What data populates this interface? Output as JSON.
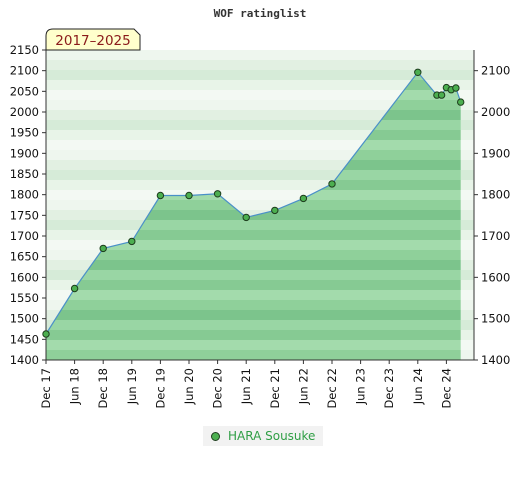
{
  "chart_data": {
    "type": "area",
    "title": "WOF ratinglist",
    "period_badge": "2017–2025",
    "ylim": [
      1400,
      2150
    ],
    "y_ticks_left": [
      "2150",
      "2100",
      "2050",
      "2000",
      "1950",
      "1900",
      "1850",
      "1800",
      "1750",
      "1700",
      "1650",
      "1600",
      "1550",
      "1500",
      "1450",
      "1400"
    ],
    "y_ticks_right": [
      "2100",
      "2000",
      "1900",
      "1800",
      "1700",
      "1600",
      "1500",
      "1400"
    ],
    "x_tick_labels": [
      "Dec 17",
      "Jun 18",
      "Dec 18",
      "Jun 19",
      "Dec 19",
      "Jun 20",
      "Dec 20",
      "Jun 21",
      "Dec 21",
      "Jun 22",
      "Dec 22",
      "Jun 23",
      "Dec 23",
      "Jun 24",
      "Dec 24"
    ],
    "series": [
      {
        "name": "HARA Sousuke",
        "color": "#4caf50",
        "points": [
          {
            "x": "2017-12",
            "y": 1463
          },
          {
            "x": "2018-06",
            "y": 1573
          },
          {
            "x": "2018-12",
            "y": 1670
          },
          {
            "x": "2019-06",
            "y": 1687
          },
          {
            "x": "2019-12",
            "y": 1798
          },
          {
            "x": "2020-06",
            "y": 1798
          },
          {
            "x": "2020-12",
            "y": 1802
          },
          {
            "x": "2021-06",
            "y": 1745
          },
          {
            "x": "2021-12",
            "y": 1762
          },
          {
            "x": "2022-06",
            "y": 1791
          },
          {
            "x": "2022-12",
            "y": 1826
          },
          {
            "x": "2024-06",
            "y": 2096
          },
          {
            "x": "2024-10",
            "y": 2041
          },
          {
            "x": "2024-11",
            "y": 2041
          },
          {
            "x": "2024-12",
            "y": 2059
          },
          {
            "x": "2025-01",
            "y": 2054
          },
          {
            "x": "2025-02",
            "y": 2058
          },
          {
            "x": "2025-03",
            "y": 2024
          }
        ]
      }
    ],
    "legend_position": "bottom-center"
  }
}
